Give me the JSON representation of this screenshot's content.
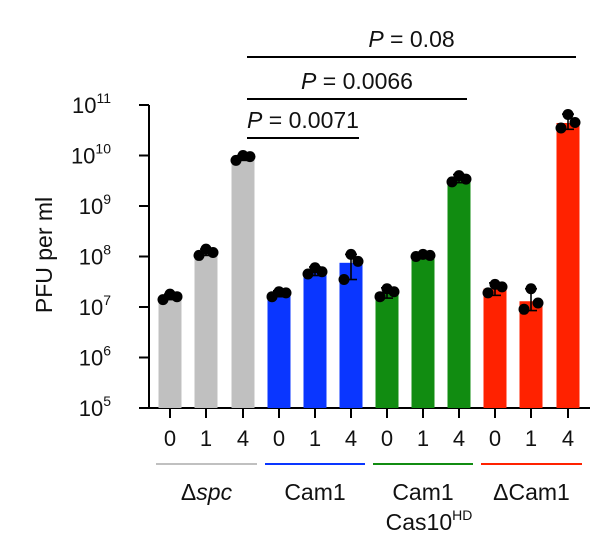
{
  "chart_data": {
    "type": "bar",
    "yscale": "log",
    "ylabel": "PFU per ml",
    "ylim_exponents": [
      5,
      11
    ],
    "y_ticks": [
      {
        "base": "10",
        "exp": "5"
      },
      {
        "base": "10",
        "exp": "6"
      },
      {
        "base": "10",
        "exp": "7"
      },
      {
        "base": "10",
        "exp": "8"
      },
      {
        "base": "10",
        "exp": "9"
      },
      {
        "base": "10",
        "exp": "10"
      },
      {
        "base": "10",
        "exp": "11"
      }
    ],
    "x_ticks": [
      "0",
      "1",
      "4",
      "0",
      "1",
      "4",
      "0",
      "1",
      "4",
      "0",
      "1",
      "4"
    ],
    "groups": [
      {
        "label_prefix": "Δ",
        "label_main": "spc",
        "label_italic": true,
        "label_line2": "",
        "label_line2_sup": "",
        "color": "#c0c0c0",
        "bars": [
          {
            "x": "0",
            "value": 16000000.0,
            "points": [
              14000000.0,
              16000000.0,
              18000000.0
            ],
            "err_low": 14000000.0,
            "err_high": 18000000.0
          },
          {
            "x": "1",
            "value": 120000000.0,
            "points": [
              105000000.0,
              120000000.0,
              140000000.0
            ],
            "err_low": 105000000.0,
            "err_high": 140000000.0
          },
          {
            "x": "4",
            "value": 9000000000.0,
            "points": [
              8000000000.0,
              9500000000.0,
              10000000000.0
            ],
            "err_low": 8000000000.0,
            "err_high": 10000000000.0
          }
        ]
      },
      {
        "label_prefix": "",
        "label_main": "Cam1",
        "label_italic": false,
        "label_line2": "",
        "label_line2_sup": "",
        "color": "#0a36ff",
        "bars": [
          {
            "x": "0",
            "value": 18000000.0,
            "points": [
              16000000.0,
              19000000.0,
              20000000.0
            ],
            "err_low": 16000000.0,
            "err_high": 21000000.0
          },
          {
            "x": "1",
            "value": 50000000.0,
            "points": [
              45000000.0,
              50000000.0,
              60000000.0
            ],
            "err_low": 42000000.0,
            "err_high": 62000000.0
          },
          {
            "x": "4",
            "value": 75000000.0,
            "points": [
              35000000.0,
              80000000.0,
              110000000.0
            ],
            "err_low": 35000000.0,
            "err_high": 110000000.0
          }
        ]
      },
      {
        "label_prefix": "",
        "label_main": "Cam1",
        "label_italic": false,
        "label_line2": "Cas10",
        "label_line2_sup": "HD",
        "color": "#118c11",
        "bars": [
          {
            "x": "0",
            "value": 19000000.0,
            "points": [
              16000000.0,
              20000000.0,
              23000000.0
            ],
            "err_low": 15000000.0,
            "err_high": 24000000.0
          },
          {
            "x": "1",
            "value": 105000000.0,
            "points": [
              100000000.0,
              105000000.0,
              110000000.0
            ],
            "err_low": 95000000.0,
            "err_high": 115000000.0
          },
          {
            "x": "4",
            "value": 3400000000.0,
            "points": [
              3000000000.0,
              3400000000.0,
              4000000000.0
            ],
            "err_low": 2900000000.0,
            "err_high": 4200000000.0
          }
        ]
      },
      {
        "label_prefix": "Δ",
        "label_main": "Cam1",
        "label_italic": false,
        "label_line2": "",
        "label_line2_sup": "",
        "color": "#ff2200",
        "bars": [
          {
            "x": "0",
            "value": 23000000.0,
            "points": [
              19000000.0,
              25000000.0,
              28000000.0
            ],
            "err_low": 17000000.0,
            "err_high": 30000000.0
          },
          {
            "x": "1",
            "value": 13000000.0,
            "points": [
              9000000.0,
              12000000.0,
              23000000.0
            ],
            "err_low": 8500000.0,
            "err_high": 23000000.0
          },
          {
            "x": "4",
            "value": 44000000000.0,
            "points": [
              35000000000.0,
              45000000000.0,
              65000000000.0
            ],
            "err_low": 33000000000.0,
            "err_high": 66000000000.0
          }
        ]
      }
    ],
    "comparisons": [
      {
        "prefix": "P",
        "text": " = 0.0071",
        "from_bar": 2,
        "to_bar": 5
      },
      {
        "prefix": "P",
        "text": " = 0.0066",
        "from_bar": 2,
        "to_bar": 8
      },
      {
        "prefix": "P",
        "text": " = 0.08",
        "from_bar": 2,
        "to_bar": 11
      }
    ],
    "grid": false
  }
}
